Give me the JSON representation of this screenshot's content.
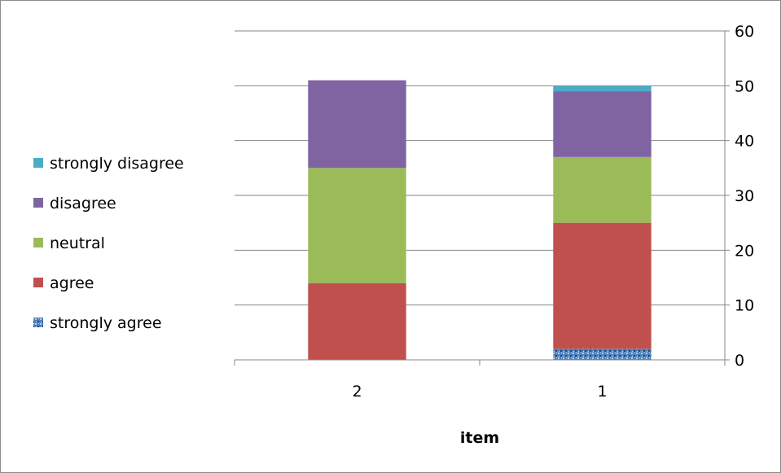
{
  "chart_data": {
    "type": "bar",
    "stacked": true,
    "categories": [
      "2",
      "1"
    ],
    "series": [
      {
        "name": "strongly agree",
        "values": [
          0,
          2
        ],
        "color": "#4f81bd",
        "pattern": "speckled"
      },
      {
        "name": "agree",
        "values": [
          14,
          23
        ],
        "color": "#c0504d"
      },
      {
        "name": "neutral",
        "values": [
          21,
          12
        ],
        "color": "#9bbb59"
      },
      {
        "name": "disagree",
        "values": [
          16,
          12
        ],
        "color": "#8064a2"
      },
      {
        "name": "strongly disagree",
        "values": [
          0,
          1
        ],
        "color": "#4bacc6"
      }
    ],
    "xlabel": "item",
    "ylabel": "",
    "ylim": [
      0,
      60
    ],
    "yticks": [
      0,
      10,
      20,
      30,
      40,
      50,
      60
    ],
    "y_axis_side": "right",
    "grid": true,
    "legend_position": "left",
    "legend_order": [
      "strongly disagree",
      "disagree",
      "neutral",
      "agree",
      "strongly agree"
    ]
  }
}
